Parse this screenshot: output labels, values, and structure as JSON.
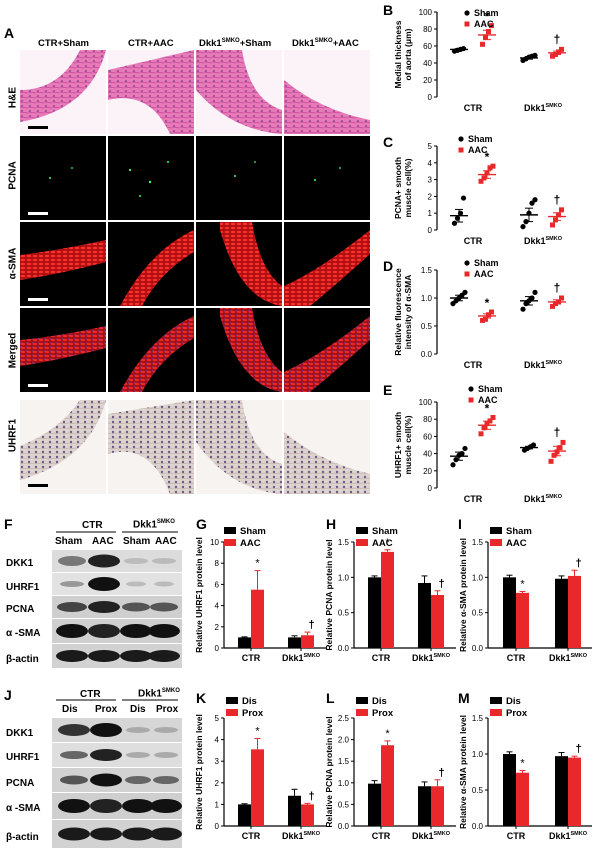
{
  "figure": {
    "panel_letters": [
      "A",
      "B",
      "C",
      "D",
      "E",
      "F",
      "G",
      "H",
      "I",
      "J",
      "K",
      "L",
      "M"
    ],
    "micro": {
      "columns": [
        "CTR+Sham",
        "CTR+AAC",
        "Dkk1SMKO+Sham",
        "Dkk1SMKO+AAC"
      ],
      "rows": [
        "H&E",
        "PCNA",
        "α-SMA",
        "Merged",
        "UHRF1"
      ]
    },
    "wb_top": {
      "group1": "CTR",
      "group2": "Dkk1SMKO",
      "lanes": [
        "Sham",
        "AAC",
        "Sham",
        "AAC"
      ],
      "proteins": [
        "DKK1",
        "UHRF1",
        "PCNA",
        "α -SMA",
        "β-actin"
      ]
    },
    "wb_bottom": {
      "group1": "CTR",
      "group2": "Dkk1SMKO",
      "lanes": [
        "Dis",
        "Prox",
        "Dis",
        "Prox"
      ],
      "proteins": [
        "DKK1",
        "UHRF1",
        "PCNA",
        "α -SMA",
        "β-actin"
      ]
    },
    "colors": {
      "black_series": "#000000",
      "red_series": "#e8282b"
    }
  },
  "chart_data": [
    {
      "panel": "B",
      "type": "scatter",
      "ylabel": "Medial thickness of aorta (μm)",
      "ylim": [
        0,
        100
      ],
      "yticks": [
        0,
        20,
        40,
        60,
        80,
        100
      ],
      "categories": [
        "CTR",
        "Dkk1SMKO"
      ],
      "series": [
        {
          "name": "Sham",
          "mean": [
            56,
            46
          ],
          "points": [
            [
              54,
              55,
              56,
              57
            ],
            [
              43,
              45,
              47,
              48,
              49
            ]
          ]
        },
        {
          "name": "AAC",
          "mean": [
            73,
            52
          ],
          "points": [
            [
              62,
              70,
              77,
              84
            ],
            [
              48,
              50,
              53,
              56
            ]
          ]
        }
      ],
      "annotations": [
        "*",
        "†"
      ]
    },
    {
      "panel": "C",
      "type": "scatter",
      "ylabel": "PCNA+ smooth muscle cell(%)",
      "ylim": [
        0,
        5
      ],
      "yticks": [
        0,
        1,
        2,
        3,
        4,
        5
      ],
      "categories": [
        "CTR",
        "Dkk1SMKO"
      ],
      "series": [
        {
          "name": "Sham",
          "mean": [
            0.85,
            0.9
          ],
          "points": [
            [
              0.4,
              0.7,
              1.0,
              1.9
            ],
            [
              0.2,
              0.5,
              1.0,
              1.6,
              1.8
            ]
          ]
        },
        {
          "name": "AAC",
          "mean": [
            3.3,
            0.8
          ],
          "points": [
            [
              2.9,
              3.1,
              3.4,
              3.7,
              3.8
            ],
            [
              0.3,
              0.6,
              0.9,
              1.2
            ]
          ]
        }
      ],
      "annotations": [
        "*",
        "†"
      ]
    },
    {
      "panel": "D",
      "type": "scatter",
      "ylabel": "Relative fluorescence intensity of α-SMA",
      "ylim": [
        0,
        1.5
      ],
      "yticks": [
        0,
        0.5,
        1.0,
        1.5
      ],
      "categories": [
        "CTR",
        "Dkk1SMKO"
      ],
      "series": [
        {
          "name": "Sham",
          "mean": [
            1.0,
            0.95
          ],
          "points": [
            [
              0.9,
              0.95,
              1.0,
              1.05,
              1.1
            ],
            [
              0.8,
              0.9,
              0.95,
              1.0,
              1.1
            ]
          ]
        },
        {
          "name": "AAC",
          "mean": [
            0.68,
            0.93
          ],
          "points": [
            [
              0.6,
              0.62,
              0.7,
              0.75
            ],
            [
              0.85,
              0.9,
              0.93,
              1.0
            ]
          ]
        }
      ],
      "annotations": [
        "*",
        "†"
      ]
    },
    {
      "panel": "E",
      "type": "scatter",
      "ylabel": "UHRF1+ smooth muscle cell(%)",
      "ylim": [
        0,
        100
      ],
      "yticks": [
        0,
        20,
        40,
        60,
        80,
        100
      ],
      "categories": [
        "CTR",
        "Dkk1SMKO"
      ],
      "series": [
        {
          "name": "Sham",
          "mean": [
            37,
            47
          ],
          "points": [
            [
              27,
              33,
              38,
              40,
              46
            ],
            [
              44,
              46,
              48,
              50
            ]
          ]
        },
        {
          "name": "AAC",
          "mean": [
            73,
            43
          ],
          "points": [
            [
              63,
              70,
              75,
              78,
              82
            ],
            [
              31,
              38,
              42,
              47,
              53
            ]
          ]
        }
      ],
      "annotations": [
        "*",
        "†"
      ]
    },
    {
      "panel": "G",
      "type": "bar",
      "ylabel": "Relative UHRF1 protein level",
      "ylim": [
        0,
        10
      ],
      "yticks": [
        0,
        2,
        4,
        6,
        8,
        10
      ],
      "categories": [
        "CTR",
        "Dkk1SMKO"
      ],
      "series": [
        {
          "name": "Sham",
          "values": [
            1.0,
            1.0
          ],
          "err": [
            0.05,
            0.15
          ]
        },
        {
          "name": "AAC",
          "values": [
            5.5,
            1.2
          ],
          "err": [
            1.8,
            0.3
          ]
        }
      ],
      "annotations": [
        "*",
        "†"
      ]
    },
    {
      "panel": "H",
      "type": "bar",
      "ylabel": "Relative PCNA protein level",
      "ylim": [
        0,
        1.5
      ],
      "yticks": [
        0,
        0.5,
        1.0,
        1.5
      ],
      "categories": [
        "CTR",
        "Dkk1SMKO"
      ],
      "series": [
        {
          "name": "Sham",
          "values": [
            1.0,
            0.92
          ],
          "err": [
            0.02,
            0.1
          ]
        },
        {
          "name": "AAC",
          "values": [
            1.36,
            0.75
          ],
          "err": [
            0.03,
            0.06
          ]
        }
      ],
      "annotations": [
        "*",
        "†"
      ]
    },
    {
      "panel": "I",
      "type": "bar",
      "ylabel": "Relative α-SMA protein level",
      "ylim": [
        0,
        1.5
      ],
      "yticks": [
        0,
        0.5,
        1.0,
        1.5
      ],
      "categories": [
        "CTR",
        "Dkk1SMKO"
      ],
      "series": [
        {
          "name": "Sham",
          "values": [
            1.0,
            0.98
          ],
          "err": [
            0.03,
            0.04
          ]
        },
        {
          "name": "AAC",
          "values": [
            0.78,
            1.02
          ],
          "err": [
            0.02,
            0.08
          ]
        }
      ],
      "annotations": [
        "*",
        "†"
      ]
    },
    {
      "panel": "K",
      "type": "bar",
      "ylabel": "Relative UHRF1 protein level",
      "ylim": [
        0,
        5
      ],
      "yticks": [
        0,
        1,
        2,
        3,
        4,
        5
      ],
      "categories": [
        "CTR",
        "Dkk1SMKO"
      ],
      "series": [
        {
          "name": "Dis",
          "values": [
            1.0,
            1.4
          ],
          "err": [
            0.03,
            0.3
          ]
        },
        {
          "name": "Prox",
          "values": [
            3.55,
            1.0
          ],
          "err": [
            0.5,
            0.05
          ]
        }
      ],
      "annotations": [
        "*",
        "†"
      ]
    },
    {
      "panel": "L",
      "type": "bar",
      "ylabel": "Relative PCNA protein level",
      "ylim": [
        0,
        2.5
      ],
      "yticks": [
        0,
        0.5,
        1.0,
        1.5,
        2.0,
        2.5
      ],
      "categories": [
        "CTR",
        "Dkk1SMKO"
      ],
      "series": [
        {
          "name": "Dis",
          "values": [
            0.98,
            0.92
          ],
          "err": [
            0.07,
            0.1
          ]
        },
        {
          "name": "Prox",
          "values": [
            1.87,
            0.92
          ],
          "err": [
            0.1,
            0.15
          ]
        }
      ],
      "annotations": [
        "*",
        "†"
      ]
    },
    {
      "panel": "M",
      "type": "bar",
      "ylabel": "Relative α-SMA protein level",
      "ylim": [
        0,
        1.5
      ],
      "yticks": [
        0,
        0.5,
        1.0,
        1.5
      ],
      "categories": [
        "CTR",
        "Dkk1SMKO"
      ],
      "series": [
        {
          "name": "Dis",
          "values": [
            1.0,
            0.97
          ],
          "err": [
            0.03,
            0.05
          ]
        },
        {
          "name": "Prox",
          "values": [
            0.74,
            0.95
          ],
          "err": [
            0.03,
            0.02
          ]
        }
      ],
      "annotations": [
        "*",
        "†"
      ]
    }
  ]
}
